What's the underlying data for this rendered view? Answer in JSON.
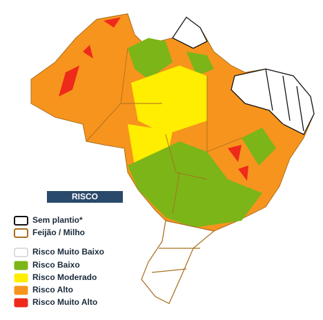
{
  "legend": {
    "title": "RISCO",
    "items": [
      {
        "label": "Sem plantio*",
        "color": "#ffffff",
        "border": "#111111"
      },
      {
        "label": "Feijão / Milho",
        "color": "#ffffff",
        "border": "#a86f1e"
      },
      {
        "label": "Risco Muito Baixo",
        "color": "#ffffff",
        "border": "#bbbbbb"
      },
      {
        "label": "Risco Baixo",
        "color": "#7cb518",
        "border": "#7cb518"
      },
      {
        "label": "Risco Moderado",
        "color": "#ffee00",
        "border": "#ffee00"
      },
      {
        "label": "Risco Alto",
        "color": "#f7941d",
        "border": "#f7941d"
      },
      {
        "label": "Risco Muito Alto",
        "color": "#ee2a1b",
        "border": "#ee2a1b"
      }
    ]
  }
}
